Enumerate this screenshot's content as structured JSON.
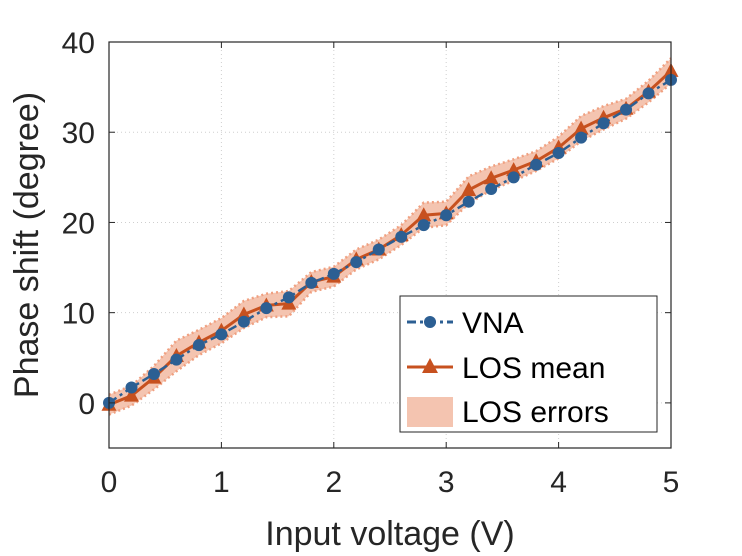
{
  "chart_data": {
    "type": "line",
    "title": "",
    "xlabel": "Input voltage (V)",
    "ylabel": "Phase shift (degree)",
    "xlim": [
      0,
      5
    ],
    "ylim": [
      -5,
      40
    ],
    "xticks": [
      0,
      1,
      2,
      3,
      4,
      5
    ],
    "yticks": [
      0,
      10,
      20,
      30,
      40
    ],
    "grid": true,
    "legend_position": "bottom-right",
    "x": [
      0,
      0.2,
      0.4,
      0.6,
      0.8,
      1.0,
      1.2,
      1.4,
      1.6,
      1.8,
      2.0,
      2.2,
      2.4,
      2.6,
      2.8,
      3.0,
      3.2,
      3.4,
      3.6,
      3.8,
      4.0,
      4.2,
      4.4,
      4.6,
      4.8,
      5.0
    ],
    "series": [
      {
        "name": "VNA",
        "marker": "circle",
        "line": "dash-dot",
        "color": "#2c5f93",
        "values": [
          0.0,
          1.7,
          3.2,
          4.8,
          6.4,
          7.6,
          9.0,
          10.5,
          11.7,
          13.3,
          14.3,
          15.6,
          17.0,
          18.4,
          19.7,
          20.8,
          22.3,
          23.7,
          25.0,
          26.4,
          27.7,
          29.4,
          31.0,
          32.5,
          34.3,
          35.8
        ]
      },
      {
        "name": "LOS mean",
        "marker": "triangle",
        "line": "solid",
        "color": "#c7511f",
        "values": [
          -0.2,
          0.8,
          2.8,
          5.2,
          6.7,
          8.0,
          9.8,
          10.8,
          11.0,
          13.4,
          14.0,
          15.9,
          17.0,
          18.6,
          20.8,
          21.0,
          23.6,
          24.9,
          25.8,
          26.8,
          28.3,
          30.4,
          31.6,
          32.6,
          34.5,
          36.8
        ]
      },
      {
        "name": "LOS errors",
        "type": "band",
        "color": "#f4c4b0",
        "edge_color": "#f0a080",
        "lower": [
          -1.3,
          -0.3,
          1.5,
          3.5,
          5.3,
          6.6,
          8.3,
          9.5,
          9.6,
          12.3,
          12.9,
          14.8,
          15.9,
          17.5,
          19.4,
          19.7,
          22.1,
          23.6,
          24.6,
          25.7,
          27.1,
          29.0,
          30.3,
          31.5,
          33.3,
          35.4
        ],
        "upper": [
          0.9,
          1.9,
          4.1,
          6.9,
          8.1,
          9.4,
          11.3,
          12.1,
          12.4,
          14.5,
          15.1,
          17.0,
          18.1,
          19.7,
          22.2,
          22.3,
          25.1,
          26.2,
          27.0,
          27.9,
          29.5,
          31.8,
          32.9,
          33.7,
          35.7,
          38.2
        ]
      }
    ]
  }
}
